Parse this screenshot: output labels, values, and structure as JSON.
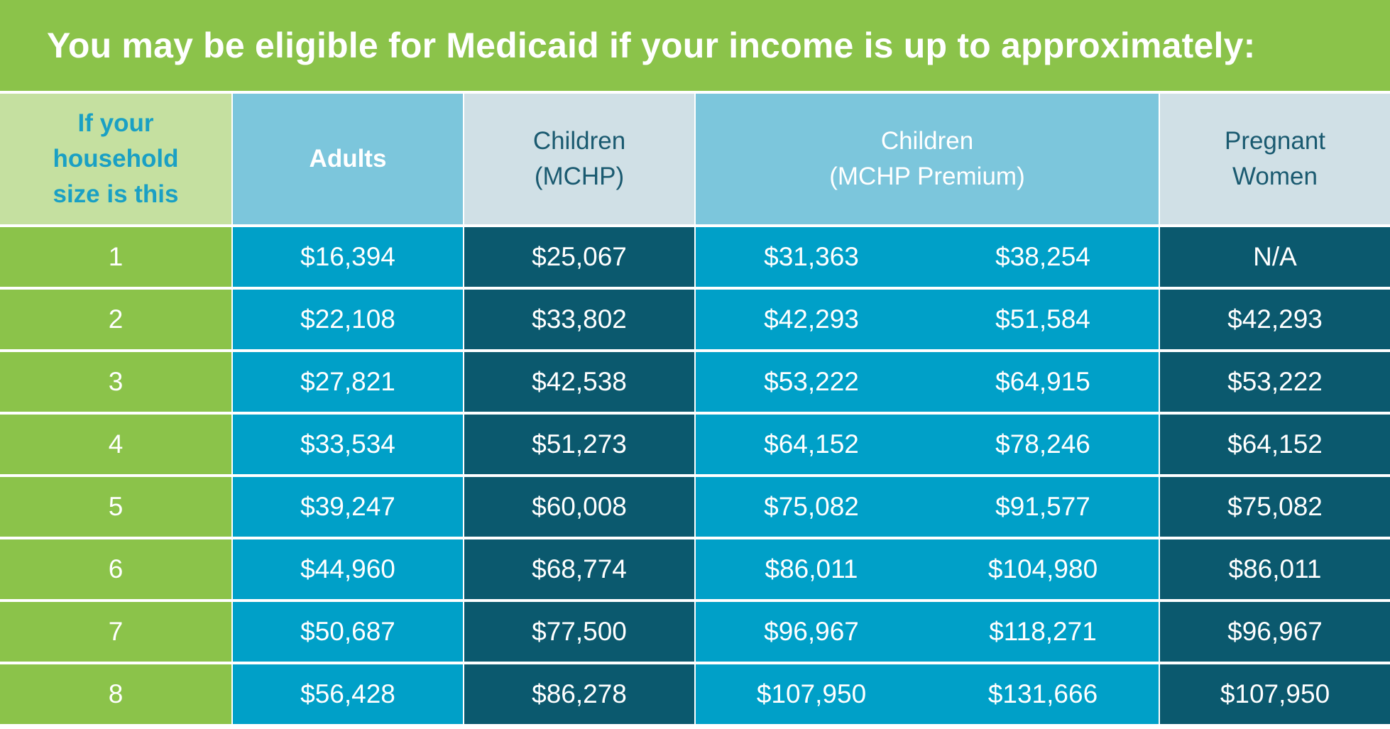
{
  "title": "You may be eligible for Medicaid if your income is up to approximately:",
  "colors": {
    "green": "#8bc34a",
    "light_green": "#c5e0a0",
    "light_blue": "#7cc6dc",
    "pale_blue": "#d0e0e6",
    "blue": "#00a0c8",
    "dark_teal": "#0b596e"
  },
  "chart_data": {
    "type": "table",
    "title": "You may be eligible for Medicaid if your income is up to approximately:",
    "headers": {
      "household_size": [
        "If your",
        "household",
        "size is this"
      ],
      "adults": "Adults",
      "children_mchp": [
        "Children",
        "(MCHP)"
      ],
      "children_mchp_premium": [
        "Children",
        "(MCHP Premium)"
      ],
      "pregnant_women": [
        "Pregnant",
        "Women"
      ]
    },
    "rows": [
      {
        "size": "1",
        "adults": "$16,394",
        "mchp": "$25,067",
        "premium_low": "$31,363",
        "premium_high": "$38,254",
        "pregnant": "N/A"
      },
      {
        "size": "2",
        "adults": "$22,108",
        "mchp": "$33,802",
        "premium_low": "$42,293",
        "premium_high": "$51,584",
        "pregnant": "$42,293"
      },
      {
        "size": "3",
        "adults": "$27,821",
        "mchp": "$42,538",
        "premium_low": "$53,222",
        "premium_high": "$64,915",
        "pregnant": "$53,222"
      },
      {
        "size": "4",
        "adults": "$33,534",
        "mchp": "$51,273",
        "premium_low": "$64,152",
        "premium_high": "$78,246",
        "pregnant": "$64,152"
      },
      {
        "size": "5",
        "adults": "$39,247",
        "mchp": "$60,008",
        "premium_low": "$75,082",
        "premium_high": "$91,577",
        "pregnant": "$75,082"
      },
      {
        "size": "6",
        "adults": "$44,960",
        "mchp": "$68,774",
        "premium_low": "$86,011",
        "premium_high": "$104,980",
        "pregnant": "$86,011"
      },
      {
        "size": "7",
        "adults": "$50,687",
        "mchp": "$77,500",
        "premium_low": "$96,967",
        "premium_high": "$118,271",
        "pregnant": "$96,967"
      },
      {
        "size": "8",
        "adults": "$56,428",
        "mchp": "$86,278",
        "premium_low": "$107,950",
        "premium_high": "$131,666",
        "pregnant": "$107,950"
      }
    ]
  }
}
